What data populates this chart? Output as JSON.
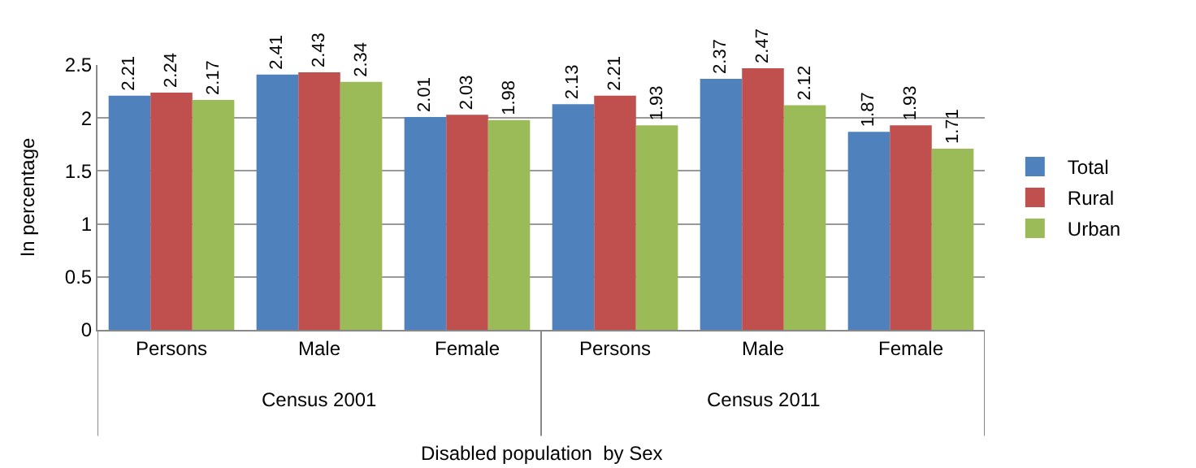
{
  "chart_data": {
    "type": "bar",
    "xlabel": "Disabled population  by Sex",
    "ylabel": "In percentage",
    "categories": [
      "Persons",
      "Male",
      "Female",
      "Persons",
      "Male",
      "Female"
    ],
    "series": [
      {
        "name": "Total",
        "color": "#4f81bd",
        "values": [
          2.21,
          2.41,
          2.01,
          2.13,
          2.37,
          1.87
        ]
      },
      {
        "name": "Rural",
        "color": "#c0504d",
        "values": [
          2.24,
          2.43,
          2.03,
          2.21,
          2.47,
          1.93
        ]
      },
      {
        "name": "Urban",
        "color": "#9bbb59",
        "values": [
          2.17,
          2.34,
          1.98,
          1.93,
          2.12,
          1.71
        ]
      }
    ],
    "annotations": [
      "Census 2001",
      "Census 2011"
    ],
    "ylim": [
      0,
      2.5
    ],
    "yticks": [
      0,
      0.5,
      1,
      1.5,
      2,
      2.5
    ],
    "grid": "y",
    "legend": "right",
    "data_labels": true
  }
}
